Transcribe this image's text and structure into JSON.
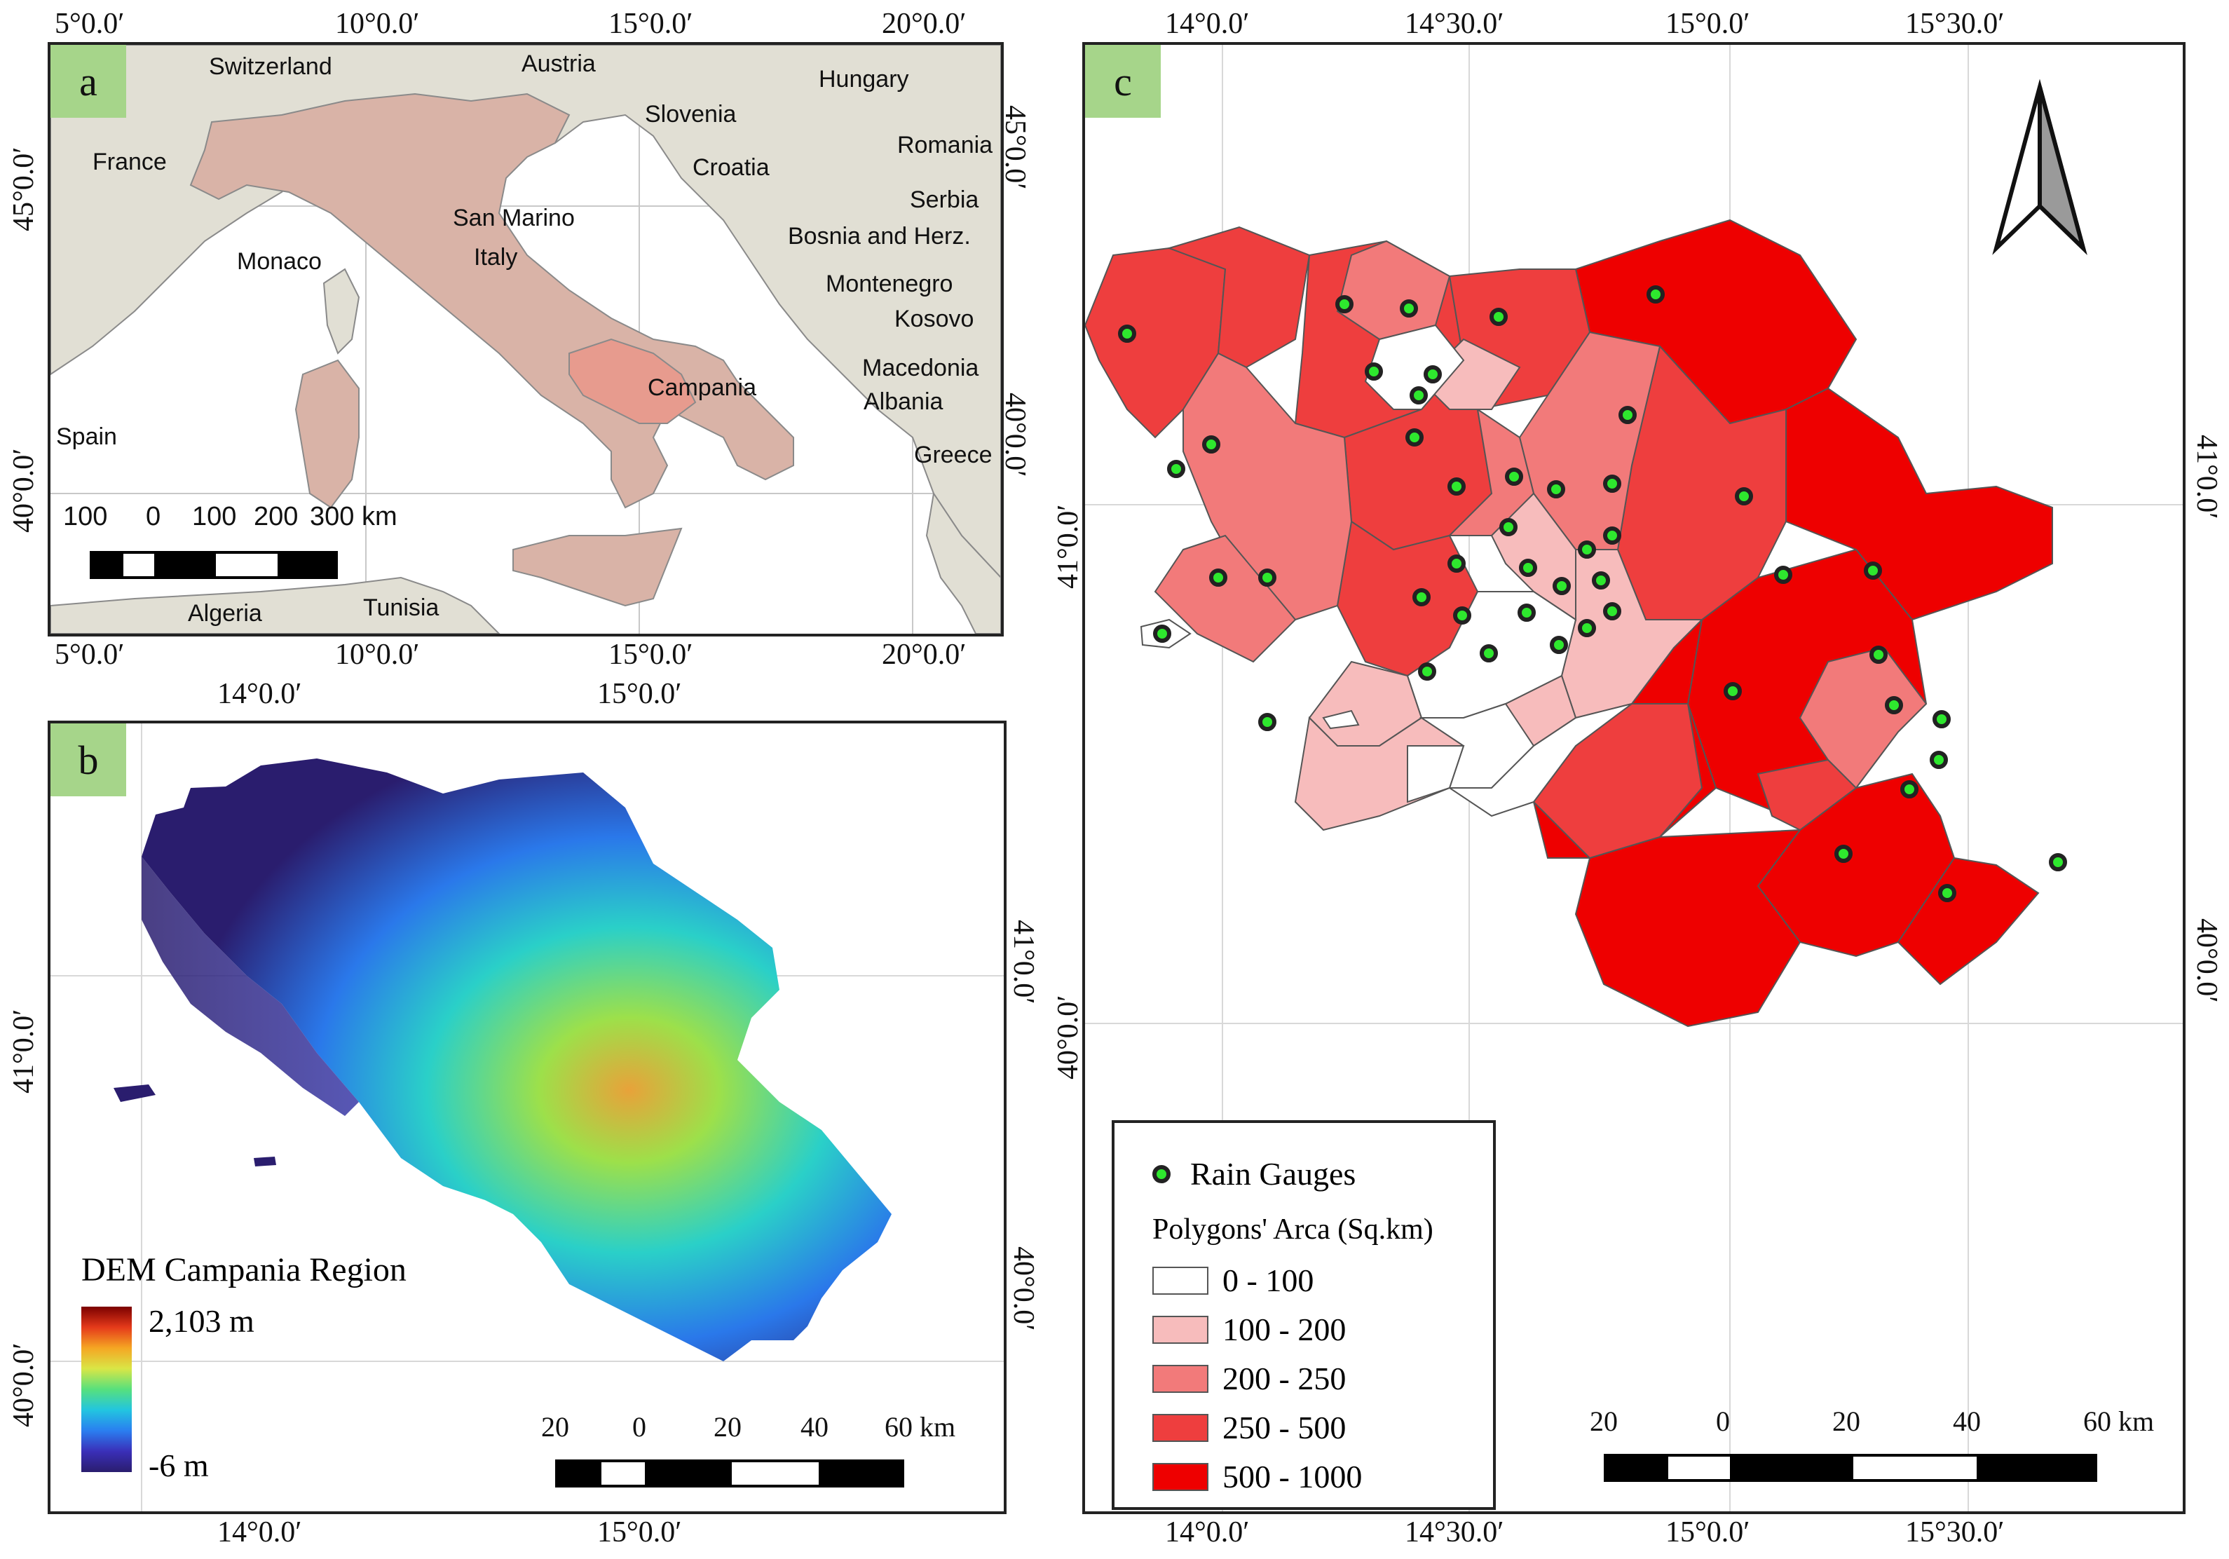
{
  "panel_a": {
    "label": "a",
    "top_coords": [
      "5°0.0′",
      "10°0.0′",
      "15°0.0′",
      "20°0.0′"
    ],
    "bottom_coords": [
      "5°0.0′",
      "10°0.0′",
      "15°0.0′",
      "20°0.0′"
    ],
    "left_coords": [
      "45°0.0′",
      "40°0.0′"
    ],
    "right_coords": [
      "45°0.0′",
      "40°0.0′"
    ],
    "countries": {
      "switzerland": "Switzerland",
      "austria": "Austria",
      "hungary": "Hungary",
      "france": "France",
      "slovenia": "Slovenia",
      "romania": "Romania",
      "croatia": "Croatia",
      "serbia": "Serbia",
      "san_marino": "San Marino",
      "bosnia": "Bosnia and Herz.",
      "monaco": "Monaco",
      "italy": "Italy",
      "montenegro": "Montenegro",
      "kosovo": "Kosovo",
      "macedonia": "Macedonia",
      "campania": "Campania",
      "albania": "Albania",
      "spain": "Spain",
      "greece": "Greece",
      "algeria": "Algeria",
      "tunisia": "Tunisia"
    },
    "scale_labels": [
      "100",
      "0",
      "100",
      "200",
      "300 km"
    ],
    "colors": {
      "sea": "#ffffff",
      "land": "#e1dfd4",
      "italy": "#d9b3a7",
      "campania": "#e79b8e"
    }
  },
  "panel_b": {
    "label": "b",
    "top_coords": [
      "14°0.0′",
      "15°0.0′"
    ],
    "bottom_coords": [
      "14°0.0′",
      "15°0.0′"
    ],
    "left_coords": [
      "41°0.0′",
      "40°0.0′"
    ],
    "right_coords": [
      "41°0.0′",
      "40°0.0′"
    ],
    "legend": {
      "title": "DEM Campania Region",
      "max": "2,103 m",
      "min": "-6 m"
    },
    "scale_labels": [
      "20",
      "0",
      "20",
      "40",
      "60 km"
    ]
  },
  "panel_c": {
    "label": "c",
    "top_coords": [
      "14°0.0′",
      "14°30.0′",
      "15°0.0′",
      "15°30.0′"
    ],
    "bottom_coords": [
      "14°0.0′",
      "14°30.0′",
      "15°0.0′",
      "15°30.0′"
    ],
    "left_coords": [
      "41°0.0′",
      "40°0.0′"
    ],
    "right_coords": [
      "41°0.0′",
      "40°0.0′"
    ],
    "legend": {
      "gauges_label": "Rain Gauges",
      "area_title": "Polygons' Arca (Sq.km)",
      "classes": [
        {
          "label": "0 - 100",
          "color": "#ffffff"
        },
        {
          "label": "100 - 200",
          "color": "#f7bcbc"
        },
        {
          "label": "200 - 250",
          "color": "#f27a7a"
        },
        {
          "label": "250 - 500",
          "color": "#ee3e3e"
        },
        {
          "label": "500 - 1000",
          "color": "#ee0000"
        }
      ]
    },
    "scale_labels": [
      "20",
      "0",
      "20",
      "40",
      "60 km"
    ],
    "gauge_color": "#2ee82e"
  }
}
